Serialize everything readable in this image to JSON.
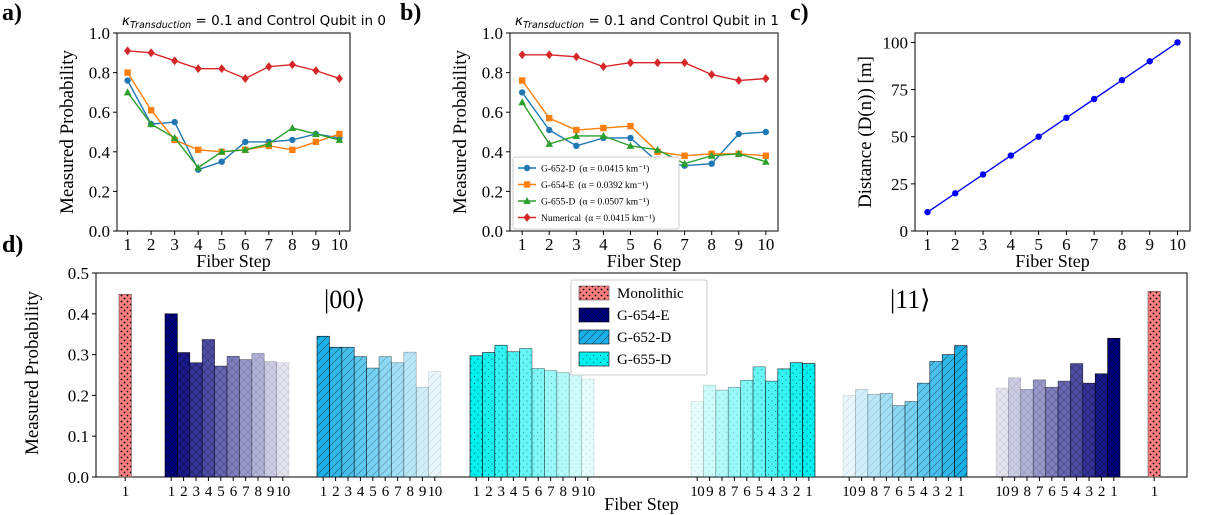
{
  "panel_labels": [
    "a)",
    "b)",
    "c)",
    "d)"
  ],
  "colors": {
    "g652": "#1f77b4",
    "g654": "#ff7f0e",
    "g655": "#2ca02c",
    "numerical": "#d62728",
    "distance": "#0000ff",
    "monolithic": "#ff7f7f",
    "g654e_bar": "#00007f",
    "g652d_bar": "#1ab0e8",
    "g655d_bar": "#00f0f0"
  },
  "chart_data": [
    {
      "id": "a",
      "type": "line",
      "title": "κTransduction = 0.1 and Control Qubit in 0",
      "title_parts": {
        "kappa": "κ",
        "sub": "Transduction",
        "rest": " = 0.1 and Control Qubit in 0"
      },
      "xlabel": "Fiber Step",
      "ylabel": "Measured Probability",
      "x": [
        1,
        2,
        3,
        4,
        5,
        6,
        7,
        8,
        9,
        10
      ],
      "xlim": [
        0.55,
        10.45
      ],
      "ylim": [
        0,
        1.0
      ],
      "yticks": [
        "0.0",
        "0.2",
        "0.4",
        "0.6",
        "0.8",
        "1.0"
      ],
      "grid": false,
      "series": [
        {
          "key": "g652",
          "marker": "circle",
          "values": [
            0.76,
            0.54,
            0.55,
            0.31,
            0.35,
            0.45,
            0.45,
            0.46,
            0.49,
            0.47
          ]
        },
        {
          "key": "g654",
          "marker": "square",
          "values": [
            0.8,
            0.61,
            0.46,
            0.41,
            0.4,
            0.41,
            0.43,
            0.41,
            0.45,
            0.49
          ]
        },
        {
          "key": "g655",
          "marker": "triangle",
          "values": [
            0.7,
            0.54,
            0.47,
            0.32,
            0.4,
            0.41,
            0.44,
            0.52,
            0.49,
            0.46
          ]
        },
        {
          "key": "numerical",
          "marker": "diamond",
          "values": [
            0.91,
            0.9,
            0.86,
            0.82,
            0.82,
            0.77,
            0.83,
            0.84,
            0.81,
            0.77
          ]
        }
      ]
    },
    {
      "id": "b",
      "type": "line",
      "title": "κTransduction = 0.1 and Control Qubit in 1",
      "title_parts": {
        "kappa": "κ",
        "sub": "Transduction",
        "rest": " = 0.1 and Control Qubit in 1"
      },
      "xlabel": "Fiber Step",
      "ylabel": "Measured Probability",
      "x": [
        1,
        2,
        3,
        4,
        5,
        6,
        7,
        8,
        9,
        10
      ],
      "xlim": [
        0.55,
        10.45
      ],
      "ylim": [
        0,
        1.0
      ],
      "yticks": [
        "0.0",
        "0.2",
        "0.4",
        "0.6",
        "0.8",
        "1.0"
      ],
      "grid": false,
      "legend_position": "lower-left",
      "series": [
        {
          "key": "g652",
          "name": "G-652-D",
          "alpha": "(α = 0.0415 km⁻¹)",
          "marker": "circle",
          "values": [
            0.7,
            0.51,
            0.43,
            0.47,
            0.47,
            0.35,
            0.33,
            0.34,
            0.49,
            0.5
          ]
        },
        {
          "key": "g654",
          "name": "G-654-E",
          "alpha": "(α = 0.0392 km⁻¹)",
          "marker": "square",
          "values": [
            0.76,
            0.57,
            0.51,
            0.52,
            0.53,
            0.4,
            0.38,
            0.39,
            0.39,
            0.38
          ]
        },
        {
          "key": "g655",
          "name": "G-655-D",
          "alpha": "(α = 0.0507 km⁻¹)",
          "marker": "triangle",
          "values": [
            0.65,
            0.44,
            0.48,
            0.48,
            0.43,
            0.41,
            0.34,
            0.38,
            0.39,
            0.35
          ]
        },
        {
          "key": "numerical",
          "name": "Numerical",
          "alpha": "(α = 0.0415 km⁻¹)",
          "marker": "diamond",
          "values": [
            0.89,
            0.89,
            0.88,
            0.83,
            0.85,
            0.85,
            0.85,
            0.79,
            0.76,
            0.77
          ]
        }
      ]
    },
    {
      "id": "c",
      "type": "line",
      "title": "",
      "xlabel": "Fiber Step",
      "ylabel": "Distance (D(n)) [m]",
      "x": [
        1,
        2,
        3,
        4,
        5,
        6,
        7,
        8,
        9,
        10
      ],
      "xlim": [
        0.55,
        10.45
      ],
      "ylim": [
        0,
        105
      ],
      "yticks": [
        "0",
        "25",
        "50",
        "75",
        "100"
      ],
      "ytick_values": [
        0,
        25,
        50,
        75,
        100
      ],
      "grid": false,
      "series": [
        {
          "key": "distance",
          "marker": "circle",
          "values": [
            10,
            20,
            30,
            40,
            50,
            60,
            70,
            80,
            90,
            100
          ]
        }
      ]
    },
    {
      "id": "d",
      "type": "bar",
      "title": "",
      "xlabel": "Fiber Step",
      "ylabel": "Measured Probability",
      "ylim": [
        0,
        0.5
      ],
      "yticks": [
        "0.0",
        "0.1",
        "0.2",
        "0.3",
        "0.4",
        "0.5"
      ],
      "grid": false,
      "legend_position": "top-center",
      "state_labels": [
        "|00⟩",
        "|11⟩"
      ],
      "legend": [
        {
          "name": "Monolithic",
          "color_key": "monolithic",
          "hatch": "stars"
        },
        {
          "name": "G-654-E",
          "color_key": "g654e_bar",
          "hatch": "cross"
        },
        {
          "name": "G-652-D",
          "color_key": "g652d_bar",
          "hatch": "diag"
        },
        {
          "name": "G-655-D",
          "color_key": "g655d_bar",
          "hatch": "dots"
        }
      ],
      "groups": [
        {
          "name": "Monolithic",
          "state": "|00⟩",
          "color_key": "monolithic",
          "hatch": "stars",
          "categories": [
            "1"
          ],
          "values": [
            0.448
          ],
          "alphas": [
            1.0
          ]
        },
        {
          "name": "G-654-E",
          "state": "|00⟩",
          "color_key": "g654e_bar",
          "hatch": "cross",
          "categories": [
            "1",
            "2",
            "3",
            "4",
            "5",
            "6",
            "7",
            "8",
            "9",
            "10"
          ],
          "values": [
            0.4,
            0.305,
            0.28,
            0.337,
            0.272,
            0.296,
            0.288,
            0.303,
            0.283,
            0.28
          ],
          "alphas": [
            1.0,
            0.9,
            0.8,
            0.7,
            0.6,
            0.5,
            0.4,
            0.3,
            0.2,
            0.1
          ]
        },
        {
          "name": "G-652-D",
          "state": "|00⟩",
          "color_key": "g652d_bar",
          "hatch": "diag",
          "categories": [
            "1",
            "2",
            "3",
            "4",
            "5",
            "6",
            "7",
            "8",
            "9",
            "10"
          ],
          "values": [
            0.345,
            0.318,
            0.318,
            0.295,
            0.267,
            0.295,
            0.28,
            0.306,
            0.22,
            0.259
          ],
          "alphas": [
            1.0,
            0.9,
            0.8,
            0.7,
            0.6,
            0.5,
            0.4,
            0.3,
            0.2,
            0.1
          ]
        },
        {
          "name": "G-655-D",
          "state": "|00⟩",
          "color_key": "g655d_bar",
          "hatch": "dots",
          "categories": [
            "1",
            "2",
            "3",
            "4",
            "5",
            "6",
            "7",
            "8",
            "9",
            "10"
          ],
          "values": [
            0.297,
            0.305,
            0.323,
            0.307,
            0.315,
            0.266,
            0.261,
            0.256,
            0.252,
            0.24
          ],
          "alphas": [
            1.0,
            0.9,
            0.8,
            0.7,
            0.6,
            0.5,
            0.4,
            0.3,
            0.2,
            0.1
          ]
        },
        {
          "name": "G-655-D",
          "state": "|11⟩",
          "color_key": "g655d_bar",
          "hatch": "dots",
          "categories": [
            "10",
            "9",
            "8",
            "7",
            "6",
            "5",
            "4",
            "3",
            "2",
            "1"
          ],
          "values": [
            0.185,
            0.225,
            0.213,
            0.22,
            0.237,
            0.27,
            0.235,
            0.265,
            0.28,
            0.278
          ],
          "alphas": [
            0.1,
            0.2,
            0.3,
            0.4,
            0.5,
            0.6,
            0.7,
            0.8,
            0.9,
            1.0
          ]
        },
        {
          "name": "G-652-D",
          "state": "|11⟩",
          "color_key": "g652d_bar",
          "hatch": "diag",
          "categories": [
            "10",
            "9",
            "8",
            "7",
            "6",
            "5",
            "4",
            "3",
            "2",
            "1"
          ],
          "values": [
            0.2,
            0.215,
            0.203,
            0.205,
            0.175,
            0.185,
            0.23,
            0.283,
            0.3,
            0.322
          ],
          "alphas": [
            0.1,
            0.2,
            0.3,
            0.4,
            0.5,
            0.6,
            0.7,
            0.8,
            0.9,
            1.0
          ]
        },
        {
          "name": "G-654-E",
          "state": "|11⟩",
          "color_key": "g654e_bar",
          "hatch": "cross",
          "categories": [
            "10",
            "9",
            "8",
            "7",
            "6",
            "5",
            "4",
            "3",
            "2",
            "1"
          ],
          "values": [
            0.218,
            0.243,
            0.215,
            0.238,
            0.22,
            0.235,
            0.278,
            0.23,
            0.253,
            0.34
          ],
          "alphas": [
            0.1,
            0.2,
            0.3,
            0.4,
            0.5,
            0.6,
            0.7,
            0.8,
            0.9,
            1.0
          ]
        },
        {
          "name": "Monolithic",
          "state": "|11⟩",
          "color_key": "monolithic",
          "hatch": "stars",
          "categories": [
            "1"
          ],
          "values": [
            0.455
          ],
          "alphas": [
            1.0
          ]
        }
      ]
    }
  ]
}
